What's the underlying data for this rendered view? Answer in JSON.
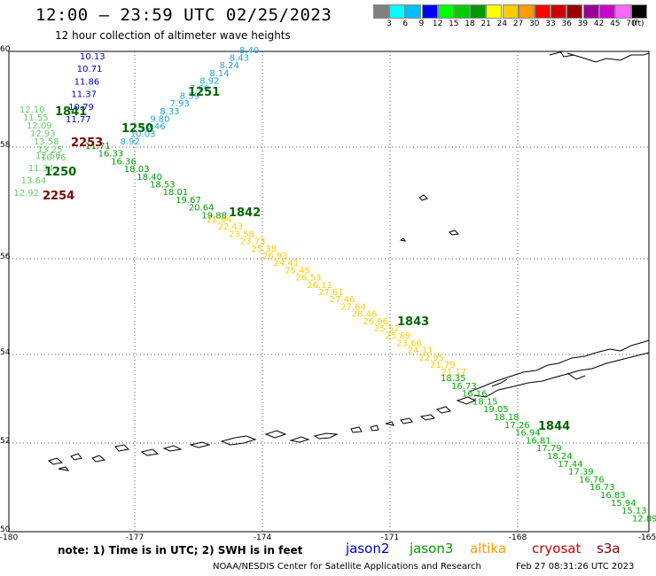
{
  "header": {
    "title": "12:00 – 23:59 UTC 02/25/2023",
    "subtitle": "12 hour collection of altimeter wave heights"
  },
  "scale": {
    "colors": [
      "#808080",
      "#00ffff",
      "#00bfff",
      "#0000ff",
      "#00ff00",
      "#00cc00",
      "#009900",
      "#ffff00",
      "#ffcc00",
      "#ff9900",
      "#ff0000",
      "#cc0000",
      "#990000",
      "#990099",
      "#cc00cc",
      "#ff66ff",
      "#000000"
    ],
    "ticks": [
      "3",
      "6",
      "9",
      "12",
      "15",
      "18",
      "21",
      "24",
      "27",
      "30",
      "33",
      "36",
      "39",
      "42",
      "45",
      "70"
    ],
    "unit": "(ft)"
  },
  "axes": {
    "lat_labels": [
      "60",
      "58",
      "56",
      "54",
      "52",
      "50"
    ],
    "lon_labels": [
      "-180",
      "-177",
      "-174",
      "-171",
      "-168",
      "-165"
    ]
  },
  "colors": {
    "jason2": "#0000cc",
    "jason3": "#009900",
    "altika": "#ff9900",
    "cryosat": "#cc0000",
    "s3a": "#800000"
  },
  "tracks": [
    {
      "id": "jason2-a",
      "color": "#0000cc",
      "heights": [
        10.13,
        10.71,
        11.86,
        11.37,
        10.79,
        11.77
      ]
    },
    {
      "id": "cryosat-a",
      "color": "#1aa6d9",
      "heights": [
        8.4,
        8.43,
        8.24,
        8.14,
        8.92,
        7.6,
        8.59,
        7.93,
        8.33,
        9.8,
        10.46,
        10.03,
        8.92
      ]
    },
    {
      "id": "jason3-a",
      "color": "#66cc66",
      "heights": [
        12.1,
        11.55,
        12.09,
        12.93,
        13.58,
        13.25,
        10.76
      ]
    },
    {
      "id": "jason3-b",
      "color": "#009900",
      "heights": [
        11.71,
        16.33,
        16.36,
        18.03,
        18.4,
        18.53,
        18.01,
        19.67,
        20.64,
        19.88
      ]
    },
    {
      "id": "altika-a",
      "color": "#ffcc00",
      "heights": [
        22.64,
        22.43,
        23.58,
        23.73,
        25.38,
        26.93,
        24.41,
        25.45,
        26.53,
        26.11,
        27.61,
        27.46,
        27.64,
        28.46,
        26.96,
        25.52,
        25.89,
        23.66,
        24.11,
        22.95,
        21.79,
        21.17
      ]
    },
    {
      "id": "jason3-c",
      "color": "#00aa00",
      "heights": [
        18.35,
        16.73,
        16.16,
        18.15,
        19.05,
        18.18,
        17.26,
        16.94,
        16.81,
        17.79,
        18.24,
        17.44,
        17.39,
        16.76,
        16.73,
        16.83,
        15.94,
        15.13,
        12.89
      ]
    },
    {
      "id": "jason3-d",
      "color": "#66cc66",
      "heights": [
        12.5,
        11.34,
        13.64,
        12.92
      ]
    }
  ],
  "timestamps": [
    {
      "label": "1251",
      "color": "#006600"
    },
    {
      "label": "1841",
      "color": "#006600"
    },
    {
      "label": "1250",
      "color": "#006600"
    },
    {
      "label": "2253",
      "color": "#800000"
    },
    {
      "label": "1250",
      "color": "#006600"
    },
    {
      "label": "2254",
      "color": "#800000"
    },
    {
      "label": "1842",
      "color": "#006600"
    },
    {
      "label": "1843",
      "color": "#006600"
    },
    {
      "label": "1844",
      "color": "#006600"
    }
  ],
  "footer": {
    "note": "note: 1) Time is in UTC; 2) SWH is in feet",
    "satellites": [
      "jason2",
      "jason3",
      "altika",
      "cryosat",
      "s3a"
    ],
    "credit": "NOAA/NESDIS Center for Satellite Applications and Research",
    "generated": "Feb 27 08:31:26 UTC 2023"
  }
}
